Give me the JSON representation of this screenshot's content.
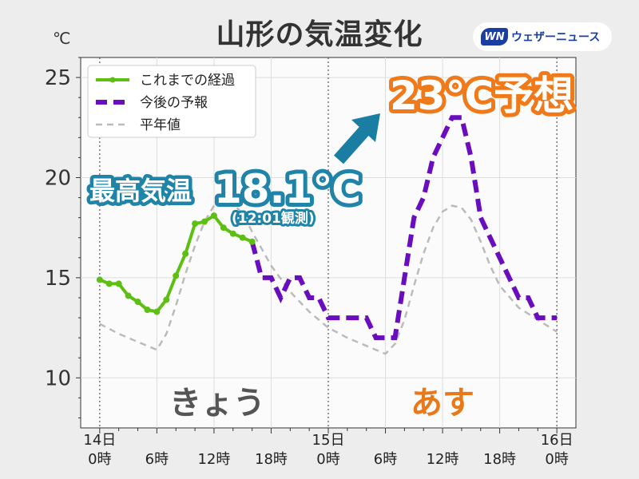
{
  "title": "山形の気温変化",
  "unit_label": "℃",
  "brand": {
    "mark": "WN",
    "text": "ウェザーニュース"
  },
  "legend": {
    "observed": "これまでの経過",
    "forecast": "今後の予報",
    "normal": "平年値"
  },
  "annotations": {
    "max_label": "最高気温",
    "max_value": "18.1℃",
    "max_time": "(12:01観測)",
    "forecast_peak": "23℃予想",
    "today": "きょう",
    "tomorrow": "あす"
  },
  "colors": {
    "observed": "#5cbf12",
    "forecast": "#6a0dbf",
    "normal": "#bbbbbb",
    "max_badge": "#1f84a8",
    "forecast_badge": "#f07a1a",
    "arrow": "#1a7ea3",
    "today_text": "#555555",
    "tomorrow_text": "#e87818"
  },
  "chart_data": {
    "type": "line",
    "x_unit": "hours from 14日 0時",
    "xlim": [
      -2,
      50
    ],
    "ylim": [
      7.5,
      26
    ],
    "y_ticks": [
      10,
      15,
      20,
      25
    ],
    "x_ticks": [
      {
        "x": 0,
        "label": "14日\n0時"
      },
      {
        "x": 6,
        "label": "6時"
      },
      {
        "x": 12,
        "label": "12時"
      },
      {
        "x": 18,
        "label": "18時"
      },
      {
        "x": 24,
        "label": "15日\n0時"
      },
      {
        "x": 30,
        "label": "6時"
      },
      {
        "x": 36,
        "label": "12時"
      },
      {
        "x": 42,
        "label": "18時"
      },
      {
        "x": 48,
        "label": "16日\n0時"
      }
    ],
    "day_lines": [
      0,
      24,
      48
    ],
    "grid": true,
    "legend_position": "top-left",
    "series": [
      {
        "name": "これまでの経過",
        "style": "solid-markers",
        "x": [
          0,
          1,
          2,
          3,
          4,
          5,
          6,
          7,
          8,
          9,
          10,
          11,
          12,
          13,
          14,
          15,
          16
        ],
        "y": [
          14.9,
          14.7,
          14.7,
          14.1,
          13.8,
          13.4,
          13.3,
          13.9,
          15.1,
          16.2,
          17.7,
          17.8,
          18.1,
          17.5,
          17.2,
          17.0,
          16.8
        ]
      },
      {
        "name": "今後の予報",
        "style": "dashed",
        "x": [
          16,
          17,
          18,
          19,
          20,
          21,
          22,
          23,
          24,
          25,
          26,
          27,
          28,
          29,
          30,
          31,
          32,
          33,
          34,
          35,
          36,
          37,
          38,
          39,
          40,
          41,
          42,
          43,
          44,
          45,
          46,
          47,
          48
        ],
        "y": [
          16.8,
          15.0,
          15.0,
          14.0,
          15.0,
          15.0,
          14.0,
          14.0,
          13.0,
          13.0,
          13.0,
          13.0,
          13.0,
          12.0,
          12.0,
          12.0,
          15.0,
          18.0,
          19.0,
          21.0,
          22.0,
          23.0,
          23.0,
          21.0,
          18.0,
          17.0,
          16.0,
          15.0,
          14.0,
          14.0,
          13.0,
          13.0,
          13.0
        ]
      },
      {
        "name": "平年値",
        "style": "dashed-gray",
        "x": [
          0,
          2,
          4,
          6,
          7,
          8,
          9,
          10,
          11,
          12,
          13,
          14,
          15,
          16,
          18,
          20,
          22,
          24,
          26,
          28,
          30,
          31,
          32,
          33,
          34,
          35,
          36,
          37,
          38,
          39,
          40,
          41,
          42,
          44,
          46,
          48
        ],
        "y": [
          12.7,
          12.2,
          11.8,
          11.4,
          12.2,
          13.6,
          15.2,
          16.6,
          17.8,
          18.6,
          18.9,
          18.7,
          18.2,
          17.3,
          15.6,
          14.3,
          13.3,
          12.5,
          12.0,
          11.6,
          11.2,
          11.7,
          12.9,
          14.6,
          16.2,
          17.5,
          18.3,
          18.6,
          18.5,
          17.9,
          16.8,
          15.6,
          14.6,
          13.5,
          12.9,
          12.3
        ]
      }
    ]
  }
}
